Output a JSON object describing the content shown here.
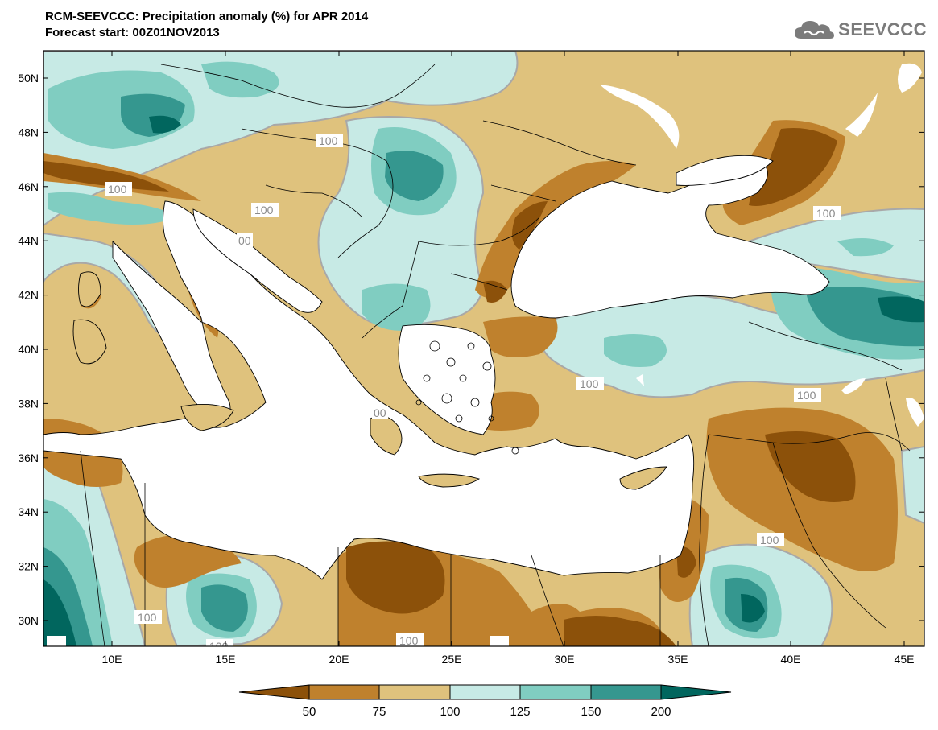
{
  "header": {
    "title": "RCM-SEEVCCC: Precipitation anomaly (%) for APR 2014",
    "subtitle": "Forecast start: 00Z01NOV2013",
    "logo_text": "SEEVCCC"
  },
  "map": {
    "lon_labels": [
      "10E",
      "15E",
      "20E",
      "25E",
      "30E",
      "35E",
      "40E",
      "45E"
    ],
    "lat_labels": [
      "50N",
      "48N",
      "46N",
      "44N",
      "42N",
      "40N",
      "38N",
      "36N",
      "34N",
      "32N",
      "30N"
    ],
    "contour_label": "100",
    "contour_label_partial": "00"
  },
  "colorbar": {
    "levels": [
      "50",
      "75",
      "100",
      "125",
      "150",
      "200"
    ],
    "colors": [
      "#8c510a",
      "#bf812d",
      "#dfc27d",
      "#c7eae5",
      "#80cdc1",
      "#35978f",
      "#01665e"
    ]
  },
  "colors": {
    "sea": "#ffffff",
    "contour": "#a8a8a8",
    "coast": "#000000"
  }
}
